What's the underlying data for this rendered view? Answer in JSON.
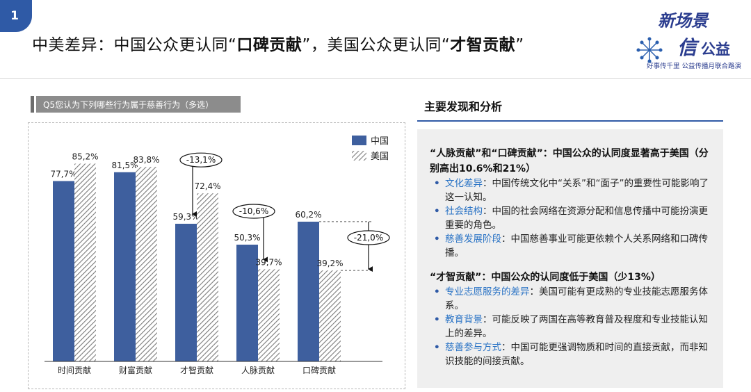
{
  "slide_number": "1",
  "title": {
    "part1": "中美差异：中国公众更认同“",
    "bold1": "口碑贡献",
    "part2": "”，美国公众更认同“",
    "bold2": "才智贡献",
    "part3": "”"
  },
  "logo": {
    "line1": "新场景",
    "line2a": "信",
    "line2b": "公益",
    "tagline": "好事传千里 公益传播月联合路演"
  },
  "question_label": "Q5您认为下列哪些行为属于慈善行为（多选）",
  "colors": {
    "china": "#3e5f9e",
    "usa_hatch": "#7a7a7a",
    "accent_blue": "#2f5aa6",
    "key_blue": "#2a73c5"
  },
  "chart_data": {
    "type": "bar",
    "categories": [
      "时间贡献",
      "财富贡献",
      "才智贡献",
      "人脉贡献",
      "口碑贡献"
    ],
    "series": [
      {
        "name": "中国",
        "values": [
          77.7,
          81.5,
          59.3,
          50.3,
          60.2
        ],
        "labels": [
          "77,7%",
          "81,5%",
          "59,3%",
          "50,3%",
          "60,2%"
        ]
      },
      {
        "name": "美国",
        "values": [
          85.2,
          83.8,
          72.4,
          39.7,
          39.2
        ],
        "labels": [
          "85,2%",
          "83,8%",
          "72,4%",
          "39,7%",
          "39,2%"
        ]
      }
    ],
    "annotations": [
      {
        "category": "才智贡献",
        "text": "-13,1%"
      },
      {
        "category": "人脉贡献",
        "text": "-10,6%"
      },
      {
        "category": "口碑贡献",
        "text": "-21,0%"
      }
    ],
    "ylim": [
      0,
      100
    ],
    "legend": "top-right",
    "grid": false
  },
  "findings": {
    "heading": "主要发现和分析",
    "section1": {
      "head": "“人脉贡献”和“口碑贡献”：中国公众的认同度显著高于美国（分别高出10.6%和21%）",
      "items": [
        {
          "key": "文化差异",
          "text": "：中国传统文化中“关系”和“面子”的重要性可能影响了这一认知。"
        },
        {
          "key": "社会结构",
          "text": "：中国的社会网络在资源分配和信息传播中可能扮演更重要的角色。"
        },
        {
          "key": "慈善发展阶段",
          "text": "：中国慈善事业可能更依赖个人关系网络和口碑传播。"
        }
      ]
    },
    "section2": {
      "head": "“才智贡献”：中国公众的认同度低于美国（少13%）",
      "items": [
        {
          "key": "专业志愿服务的差异",
          "text": "：美国可能有更成熟的专业技能志愿服务体系。"
        },
        {
          "key": "教育背景",
          "text": "：可能反映了两国在高等教育普及程度和专业技能认知上的差异。"
        },
        {
          "key": "慈善参与方式",
          "text": "：中国可能更强调物质和时间的直接贡献，而非知识技能的间接贡献。"
        }
      ]
    }
  }
}
